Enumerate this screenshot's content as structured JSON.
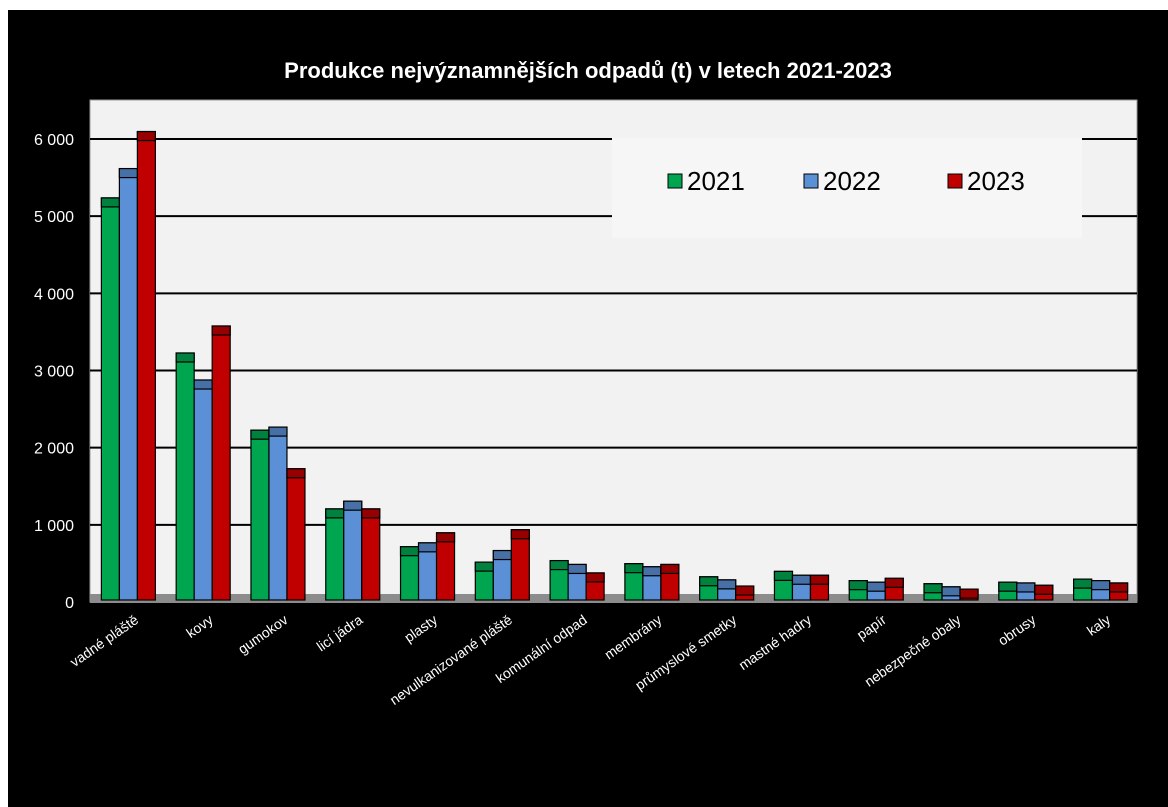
{
  "chart_data": {
    "type": "bar",
    "title": "Produkce nejvýznamnějších odpadů (t) v letech 2021-2023",
    "xlabel": "",
    "ylabel": "",
    "ylim": [
      0,
      6000
    ],
    "yticks": [
      0,
      1000,
      2000,
      3000,
      4000,
      5000,
      6000
    ],
    "ytick_labels": [
      "0",
      "1 000",
      "2 000",
      "3 000",
      "4 000",
      "5 000",
      "6 000"
    ],
    "grid": true,
    "legend_position": "top-right",
    "categories": [
      "vadné pláště",
      "kovy",
      "gumokov",
      "licí jádra",
      "plasty",
      "nevulkanizované pláště",
      "komunální odpad",
      "membrány",
      "průmyslové smetky",
      "mastné hadry",
      "papír",
      "nebezpečné obaly",
      "obrusy",
      "kaly"
    ],
    "series": [
      {
        "name": "2021",
        "color": "#00a550",
        "values": [
          5120,
          3110,
          2110,
          1090,
          600,
          400,
          420,
          380,
          210,
          280,
          160,
          120,
          140,
          180
        ]
      },
      {
        "name": "2022",
        "color": "#5b8fd6",
        "values": [
          5500,
          2760,
          2150,
          1190,
          650,
          550,
          370,
          340,
          170,
          230,
          140,
          80,
          130,
          160
        ]
      },
      {
        "name": "2023",
        "color": "#c00000",
        "values": [
          5980,
          3460,
          1610,
          1090,
          780,
          820,
          260,
          370,
          90,
          230,
          190,
          50,
          100,
          130
        ]
      }
    ]
  }
}
